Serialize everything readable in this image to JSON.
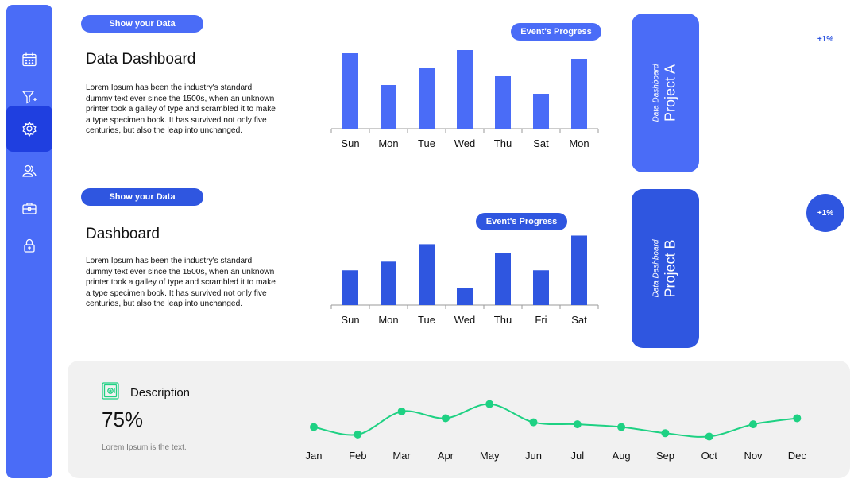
{
  "colors": {
    "sidebar": "#4a6cf7",
    "sidebar_active": "#1f3fe0",
    "bar_primary": "#4a6cf7",
    "bar_secondary": "#2f56e0",
    "line_accent": "#1ed183",
    "panel_bg": "#f1f1f1"
  },
  "sidebar": {
    "items": [
      {
        "icon": "calendar-icon",
        "active": false
      },
      {
        "icon": "filter-icon",
        "active": false
      },
      {
        "icon": "gear-icon",
        "active": true
      },
      {
        "icon": "users-icon",
        "active": false
      },
      {
        "icon": "briefcase-icon",
        "active": false
      },
      {
        "icon": "lock-icon",
        "active": false
      }
    ]
  },
  "section1": {
    "button_label": "Show your  Data",
    "title": "Data Dashboard",
    "body": "Lorem Ipsum has been the industry's standard dummy text ever since the 1500s, when an unknown printer took a galley of type and scrambled it to make a type specimen book. It has survived not only five centuries, but also the leap into unchanged.",
    "chart_badge": "Event's Progress"
  },
  "section2": {
    "button_label": "Show your  Data",
    "title": "Dashboard",
    "body": "Lorem Ipsum has been the industry's standard dummy text ever since the 1500s, when an unknown printer took a galley of type and scrambled it to make a type specimen book. It has survived not only five centuries, but also the leap into unchanged.",
    "chart_badge": "Event's Progress"
  },
  "projects": [
    {
      "subtitle": "Data Dashboard",
      "name": "Project A",
      "delta": "+1%"
    },
    {
      "subtitle": "Data Dashboard",
      "name": "Project B",
      "delta": "+1%"
    }
  ],
  "description": {
    "icon": "safe-icon",
    "title": "Description",
    "value": "75%",
    "note": "Lorem Ipsum is the text."
  },
  "chart_data": [
    {
      "type": "bar",
      "categories": [
        "Sun",
        "Mon",
        "Tue",
        "Wed",
        "Thu",
        "Sat",
        "Mon"
      ],
      "values": [
        95,
        55,
        77,
        99,
        66,
        44,
        88
      ],
      "ylim": [
        0,
        100
      ],
      "color": "#4a6cf7"
    },
    {
      "type": "bar",
      "categories": [
        "Sun",
        "Mon",
        "Tue",
        "Wed",
        "Thu",
        "Fri",
        "Sat"
      ],
      "values": [
        40,
        50,
        70,
        20,
        60,
        40,
        80
      ],
      "ylim": [
        0,
        85
      ],
      "color": "#2f56e0"
    },
    {
      "type": "line",
      "categories": [
        "Jan",
        "Feb",
        "Mar",
        "Apr",
        "May",
        "Jun",
        "Jul",
        "Aug",
        "Sep",
        "Oct",
        "Nov",
        "Dec"
      ],
      "values": [
        57,
        46,
        80,
        70,
        91,
        64,
        61,
        57,
        48,
        43,
        61,
        70
      ],
      "ylim": [
        0,
        100
      ],
      "color": "#1ed183"
    }
  ]
}
